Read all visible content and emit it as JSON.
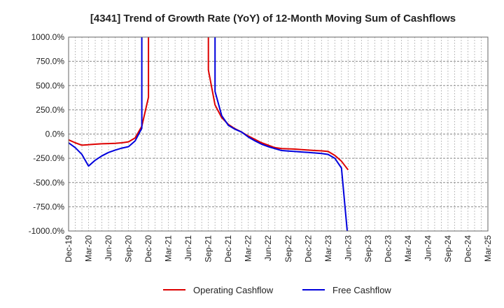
{
  "chart_data": {
    "type": "line",
    "title": "[4341]  Trend of Growth Rate (YoY) of 12-Month Moving Sum of Cashflows",
    "xlabel": "",
    "ylabel": "",
    "ylim": [
      -1000,
      1000
    ],
    "y_ticks": [
      "1000.0%",
      "750.0%",
      "500.0%",
      "250.0%",
      "0.0%",
      "-250.0%",
      "-500.0%",
      "-750.0%",
      "-1000.0%"
    ],
    "y_tick_values": [
      1000,
      750,
      500,
      250,
      0,
      -250,
      -500,
      -750,
      -1000
    ],
    "x_ticks": [
      "Dec-19",
      "Mar-20",
      "Jun-20",
      "Sep-20",
      "Dec-20",
      "Mar-21",
      "Jun-21",
      "Sep-21",
      "Dec-21",
      "Mar-22",
      "Jun-22",
      "Sep-22",
      "Dec-22",
      "Mar-23",
      "Jun-23",
      "Sep-23",
      "Dec-23",
      "Mar-24",
      "Jun-24",
      "Sep-24",
      "Dec-24",
      "Mar-25"
    ],
    "x_start": "2019-12",
    "x_end": "2025-03",
    "grid": true,
    "legend_position": "bottom",
    "series": [
      {
        "name": "Operating Cashflow",
        "color": "#dd0000",
        "points": [
          [
            "2019-12",
            -60
          ],
          [
            "2020-01",
            -90
          ],
          [
            "2020-02",
            -115
          ],
          [
            "2020-03",
            -110
          ],
          [
            "2020-04",
            -105
          ],
          [
            "2020-05",
            -100
          ],
          [
            "2020-06",
            -98
          ],
          [
            "2020-07",
            -95
          ],
          [
            "2020-08",
            -90
          ],
          [
            "2020-09",
            -80
          ],
          [
            "2020-10",
            -40
          ],
          [
            "2020-11",
            80
          ],
          [
            "2020-12",
            380
          ],
          [
            "2020-12",
            1100
          ],
          [
            "2021-09",
            1100
          ],
          [
            "2021-09",
            660
          ],
          [
            "2021-10",
            300
          ],
          [
            "2021-11",
            170
          ],
          [
            "2021-12",
            100
          ],
          [
            "2022-01",
            55
          ],
          [
            "2022-02",
            20
          ],
          [
            "2022-03",
            -20
          ],
          [
            "2022-04",
            -55
          ],
          [
            "2022-05",
            -90
          ],
          [
            "2022-06",
            -115
          ],
          [
            "2022-07",
            -140
          ],
          [
            "2022-08",
            -150
          ],
          [
            "2022-09",
            -152
          ],
          [
            "2022-10",
            -155
          ],
          [
            "2022-11",
            -160
          ],
          [
            "2022-12",
            -165
          ],
          [
            "2023-01",
            -170
          ],
          [
            "2023-02",
            -173
          ],
          [
            "2023-03",
            -180
          ],
          [
            "2023-04",
            -220
          ],
          [
            "2023-05",
            -280
          ],
          [
            "2023-06",
            -370
          ]
        ]
      },
      {
        "name": "Free Cashflow",
        "color": "#0000dd",
        "points": [
          [
            "2019-12",
            -90
          ],
          [
            "2020-01",
            -140
          ],
          [
            "2020-02",
            -210
          ],
          [
            "2020-03",
            -330
          ],
          [
            "2020-04",
            -270
          ],
          [
            "2020-05",
            -225
          ],
          [
            "2020-06",
            -190
          ],
          [
            "2020-07",
            -165
          ],
          [
            "2020-08",
            -145
          ],
          [
            "2020-09",
            -130
          ],
          [
            "2020-10",
            -70
          ],
          [
            "2020-11",
            60
          ],
          [
            "2020-11",
            1100
          ],
          [
            "2021-10",
            1100
          ],
          [
            "2021-10",
            640
          ],
          [
            "2021-10",
            440
          ],
          [
            "2021-11",
            190
          ],
          [
            "2021-12",
            90
          ],
          [
            "2022-01",
            50
          ],
          [
            "2022-02",
            20
          ],
          [
            "2022-03",
            -30
          ],
          [
            "2022-04",
            -70
          ],
          [
            "2022-05",
            -105
          ],
          [
            "2022-06",
            -130
          ],
          [
            "2022-07",
            -150
          ],
          [
            "2022-08",
            -170
          ],
          [
            "2022-09",
            -175
          ],
          [
            "2022-10",
            -180
          ],
          [
            "2022-11",
            -185
          ],
          [
            "2022-12",
            -190
          ],
          [
            "2023-01",
            -195
          ],
          [
            "2023-02",
            -200
          ],
          [
            "2023-03",
            -210
          ],
          [
            "2023-04",
            -250
          ],
          [
            "2023-05",
            -350
          ],
          [
            "2023-06",
            -1100
          ]
        ]
      }
    ]
  }
}
